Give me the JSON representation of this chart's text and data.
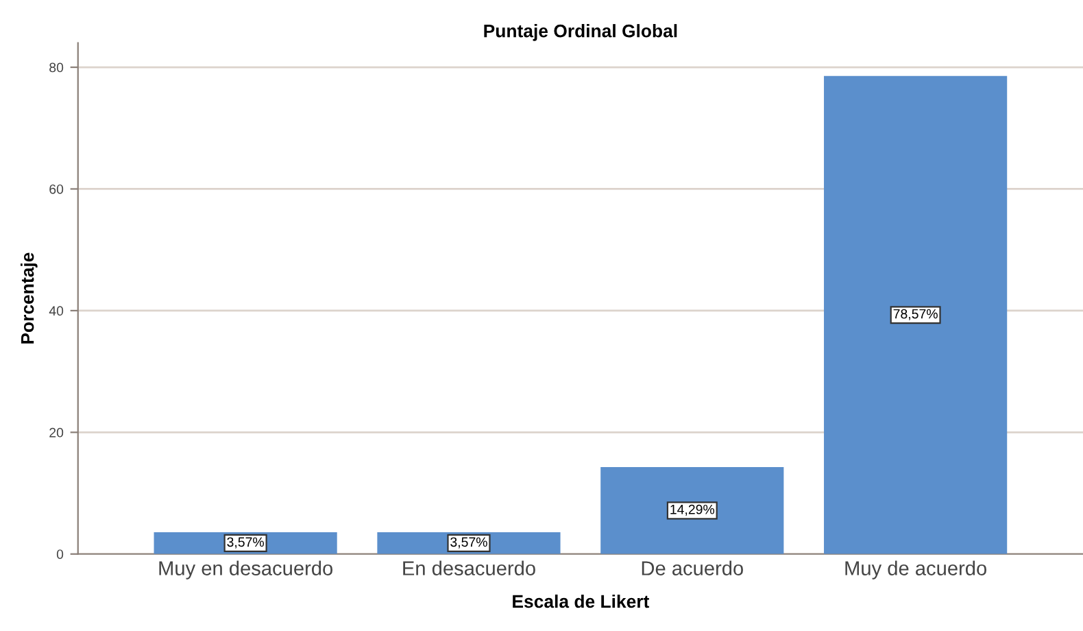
{
  "chart_data": {
    "type": "bar",
    "title": "Puntaje Ordinal Global",
    "xlabel": "Escala de Likert",
    "ylabel": "Porcentaje",
    "categories": [
      "Muy en desacuerdo",
      "En desacuerdo",
      "De acuerdo",
      "Muy de acuerdo"
    ],
    "values": [
      3.57,
      3.57,
      14.29,
      78.57
    ],
    "value_labels": [
      "3,57%",
      "3,57%",
      "14,29%",
      "78,57%"
    ],
    "color": "#5b8fcc",
    "ylim": [
      0,
      84
    ],
    "yticks": [
      0,
      20,
      40,
      60,
      80
    ],
    "grid": "y"
  }
}
